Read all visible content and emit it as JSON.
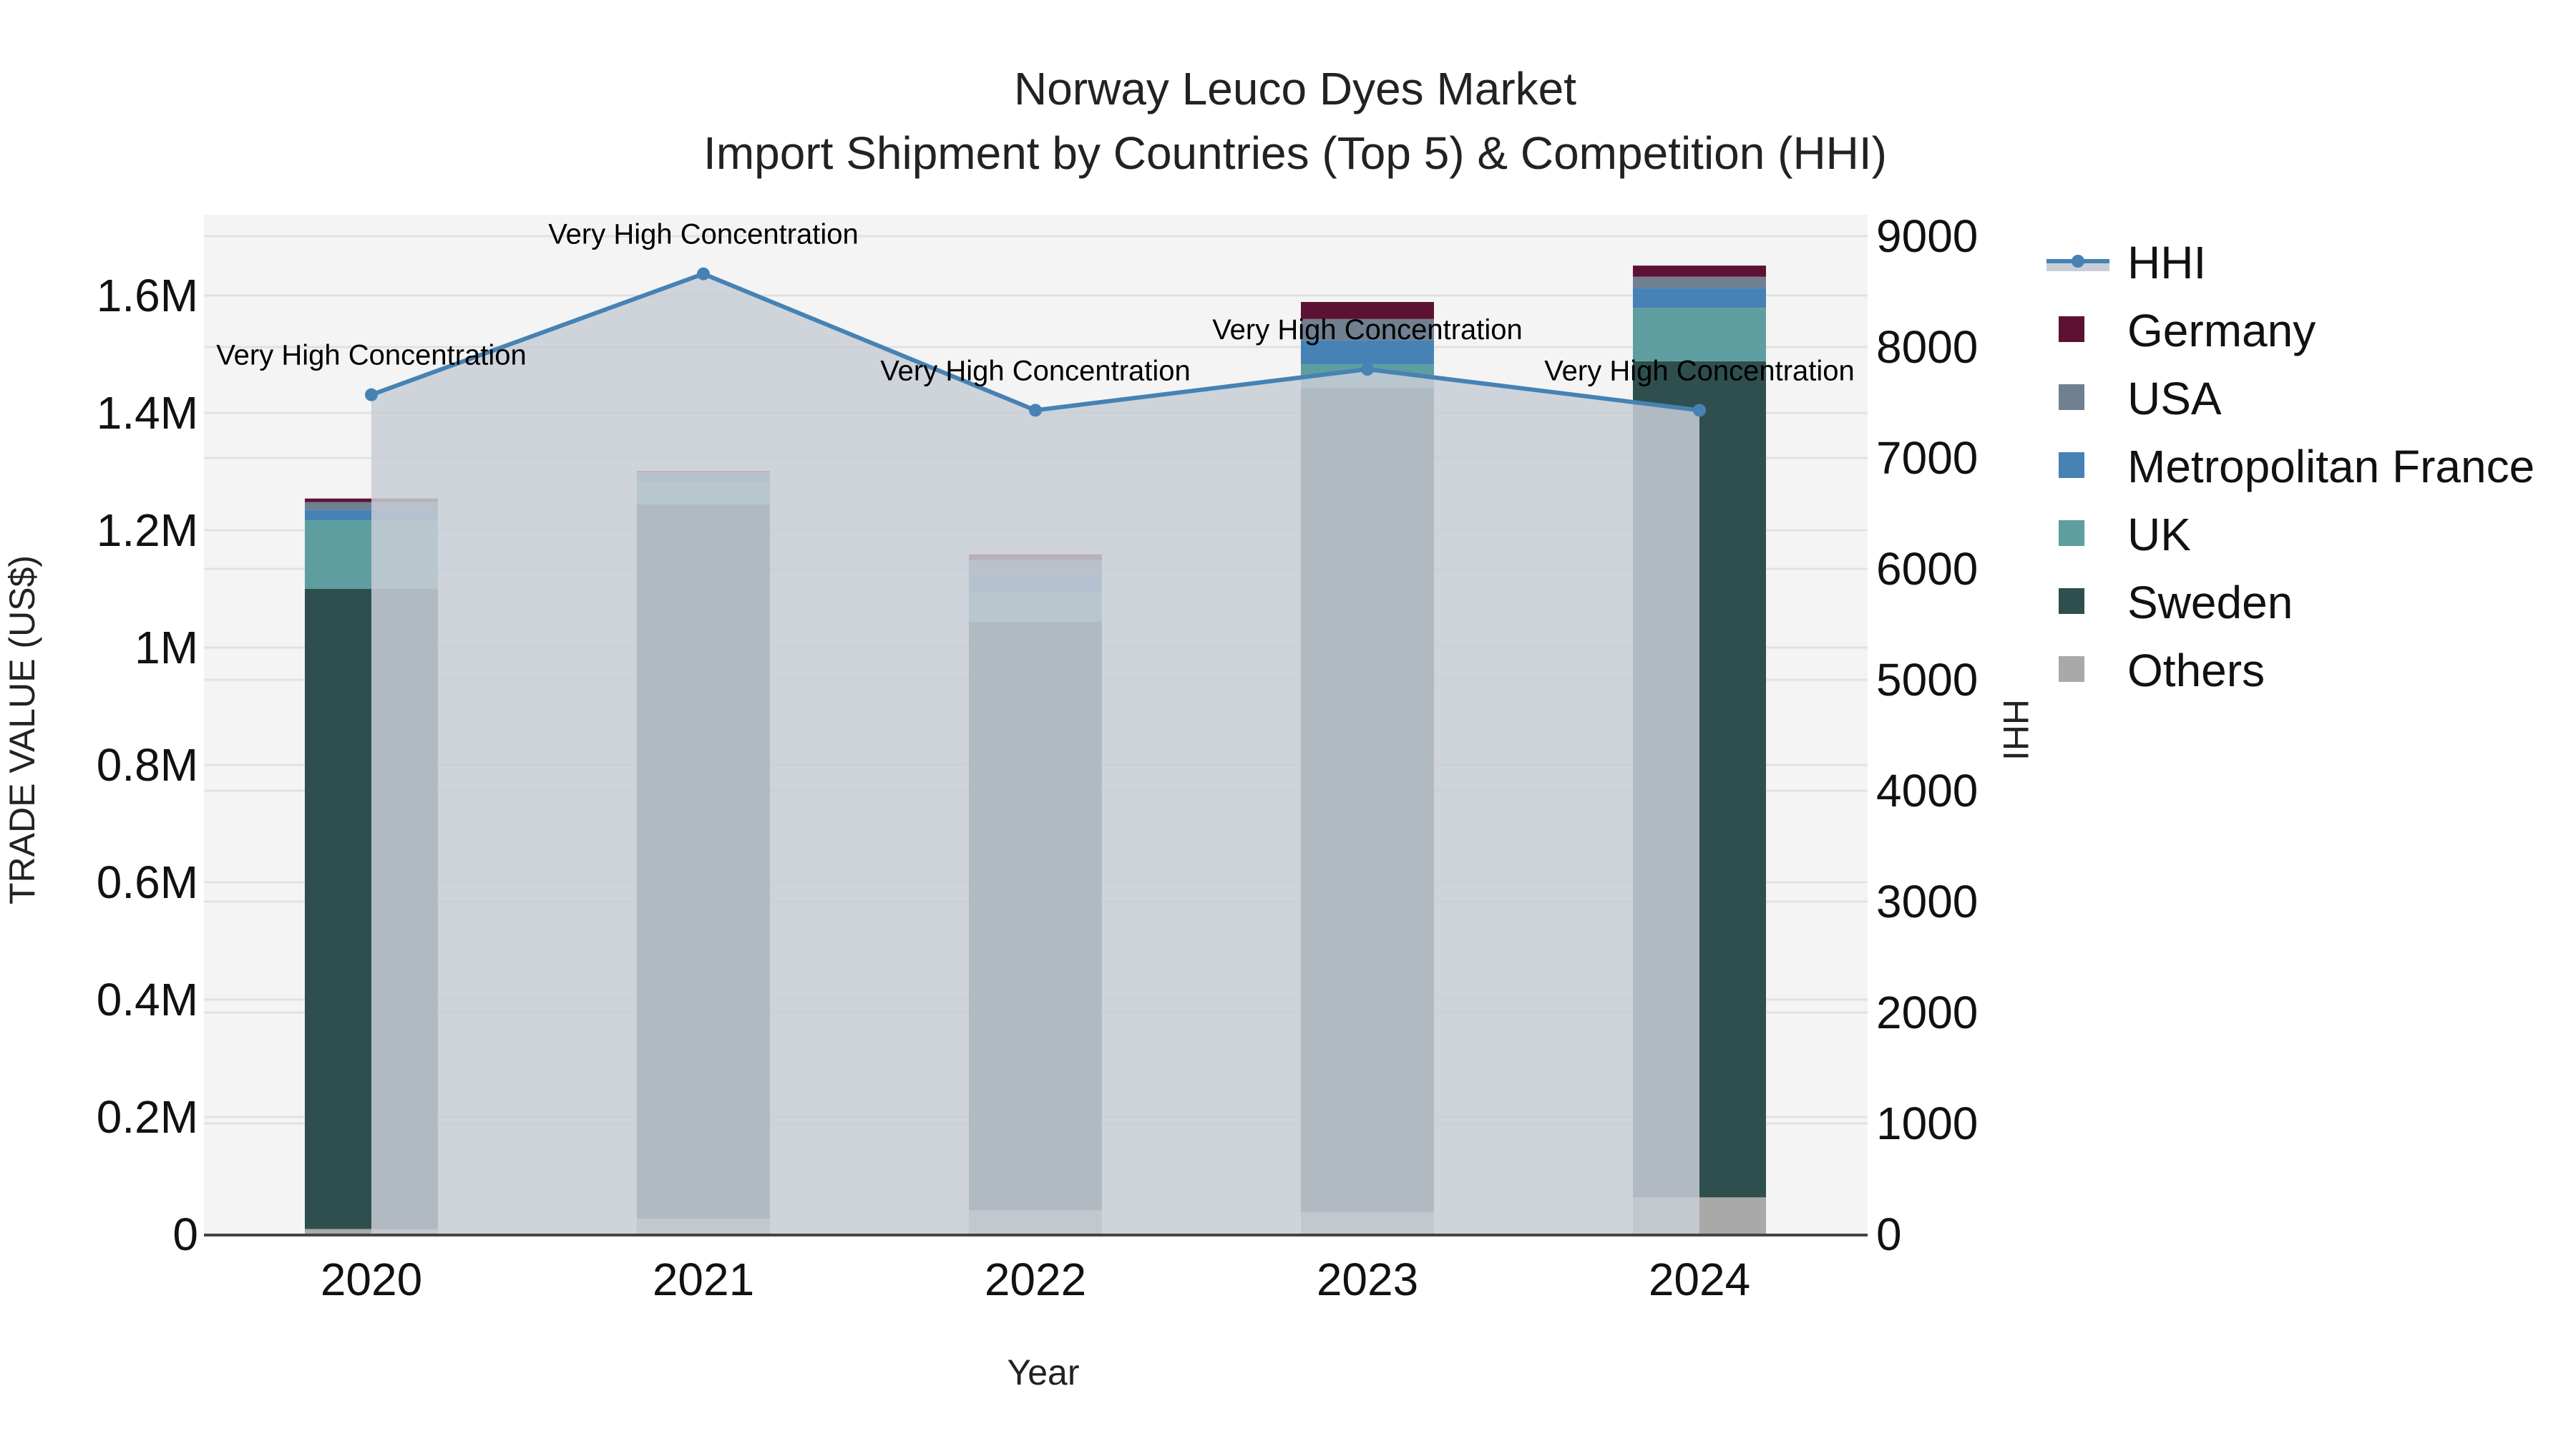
{
  "chart_data": {
    "type": "bar",
    "subtype": "stacked bar with line overlay (dual axis)",
    "title": "Norway Leuco Dyes Market",
    "subtitle": "Import Shipment by Countries (Top 5) & Competition (HHI)",
    "xlabel": "Year",
    "ylabel": "TRADE VALUE (US$)",
    "y2label": "HHI",
    "categories": [
      "2020",
      "2021",
      "2022",
      "2023",
      "2024"
    ],
    "ylim": [
      0,
      1730000
    ],
    "y2lim": [
      0,
      9050
    ],
    "yticks": [
      0,
      200000,
      400000,
      600000,
      800000,
      1000000,
      1200000,
      1400000,
      1600000
    ],
    "ytick_labels": [
      "0",
      "0.2M",
      "0.4M",
      "0.6M",
      "0.8M",
      "1M",
      "1.2M",
      "1.4M",
      "1.6M"
    ],
    "y2ticks": [
      0,
      1000,
      2000,
      3000,
      4000,
      5000,
      6000,
      7000,
      8000,
      9000
    ],
    "y2tick_labels": [
      "0",
      "1000",
      "2000",
      "3000",
      "4000",
      "5000",
      "6000",
      "7000",
      "8000",
      "9000"
    ],
    "grid": true,
    "legend_position": "right",
    "series": [
      {
        "name": "Others",
        "type": "bar",
        "color": "#a9a9a9",
        "values": [
          9000,
          27000,
          41000,
          38000,
          63000
        ]
      },
      {
        "name": "Sweden",
        "type": "bar",
        "color": "#2f4f4f",
        "values": [
          1091000,
          1217000,
          1003000,
          1405000,
          1425000
        ]
      },
      {
        "name": "UK",
        "type": "bar",
        "color": "#5f9ea0",
        "values": [
          117000,
          38000,
          50000,
          40000,
          91000
        ]
      },
      {
        "name": "Metropolitan France",
        "type": "bar",
        "color": "#4682b4",
        "values": [
          18000,
          8000,
          27000,
          41000,
          34000
        ]
      },
      {
        "name": "USA",
        "type": "bar",
        "color": "#708090",
        "values": [
          13000,
          9000,
          28000,
          36000,
          19000
        ]
      },
      {
        "name": "Germany",
        "type": "bar",
        "color": "#5e1233",
        "values": [
          6000,
          2000,
          10000,
          29000,
          19000
        ]
      },
      {
        "name": "HHI",
        "type": "line",
        "axis": "y2",
        "color": "#4682b4",
        "fill": "#c8cdd5",
        "values": [
          7570,
          8660,
          7430,
          7800,
          7430
        ]
      }
    ],
    "annotations": [
      {
        "x": "2020",
        "text": "Very High Concentration"
      },
      {
        "x": "2021",
        "text": "Very High Concentration"
      },
      {
        "x": "2022",
        "text": "Very High Concentration"
      },
      {
        "x": "2023",
        "text": "Very High Concentration"
      },
      {
        "x": "2024",
        "text": "Very High Concentration"
      }
    ]
  },
  "legend": {
    "items": [
      {
        "label": "HHI",
        "kind": "line",
        "color": "#4682b4"
      },
      {
        "label": "Germany",
        "kind": "box",
        "color": "#5e1233"
      },
      {
        "label": "USA",
        "kind": "box",
        "color": "#708090"
      },
      {
        "label": "Metropolitan France",
        "kind": "box",
        "color": "#4682b4"
      },
      {
        "label": "UK",
        "kind": "box",
        "color": "#5f9ea0"
      },
      {
        "label": "Sweden",
        "kind": "box",
        "color": "#2f4f4f"
      },
      {
        "label": "Others",
        "kind": "box",
        "color": "#a9a9a9"
      }
    ]
  },
  "colors": {
    "plot_bg": "#f4f4f4",
    "grid": "#e2e2e2",
    "axis_line": "#444444",
    "hhi_fill": "#c8cdd5"
  }
}
